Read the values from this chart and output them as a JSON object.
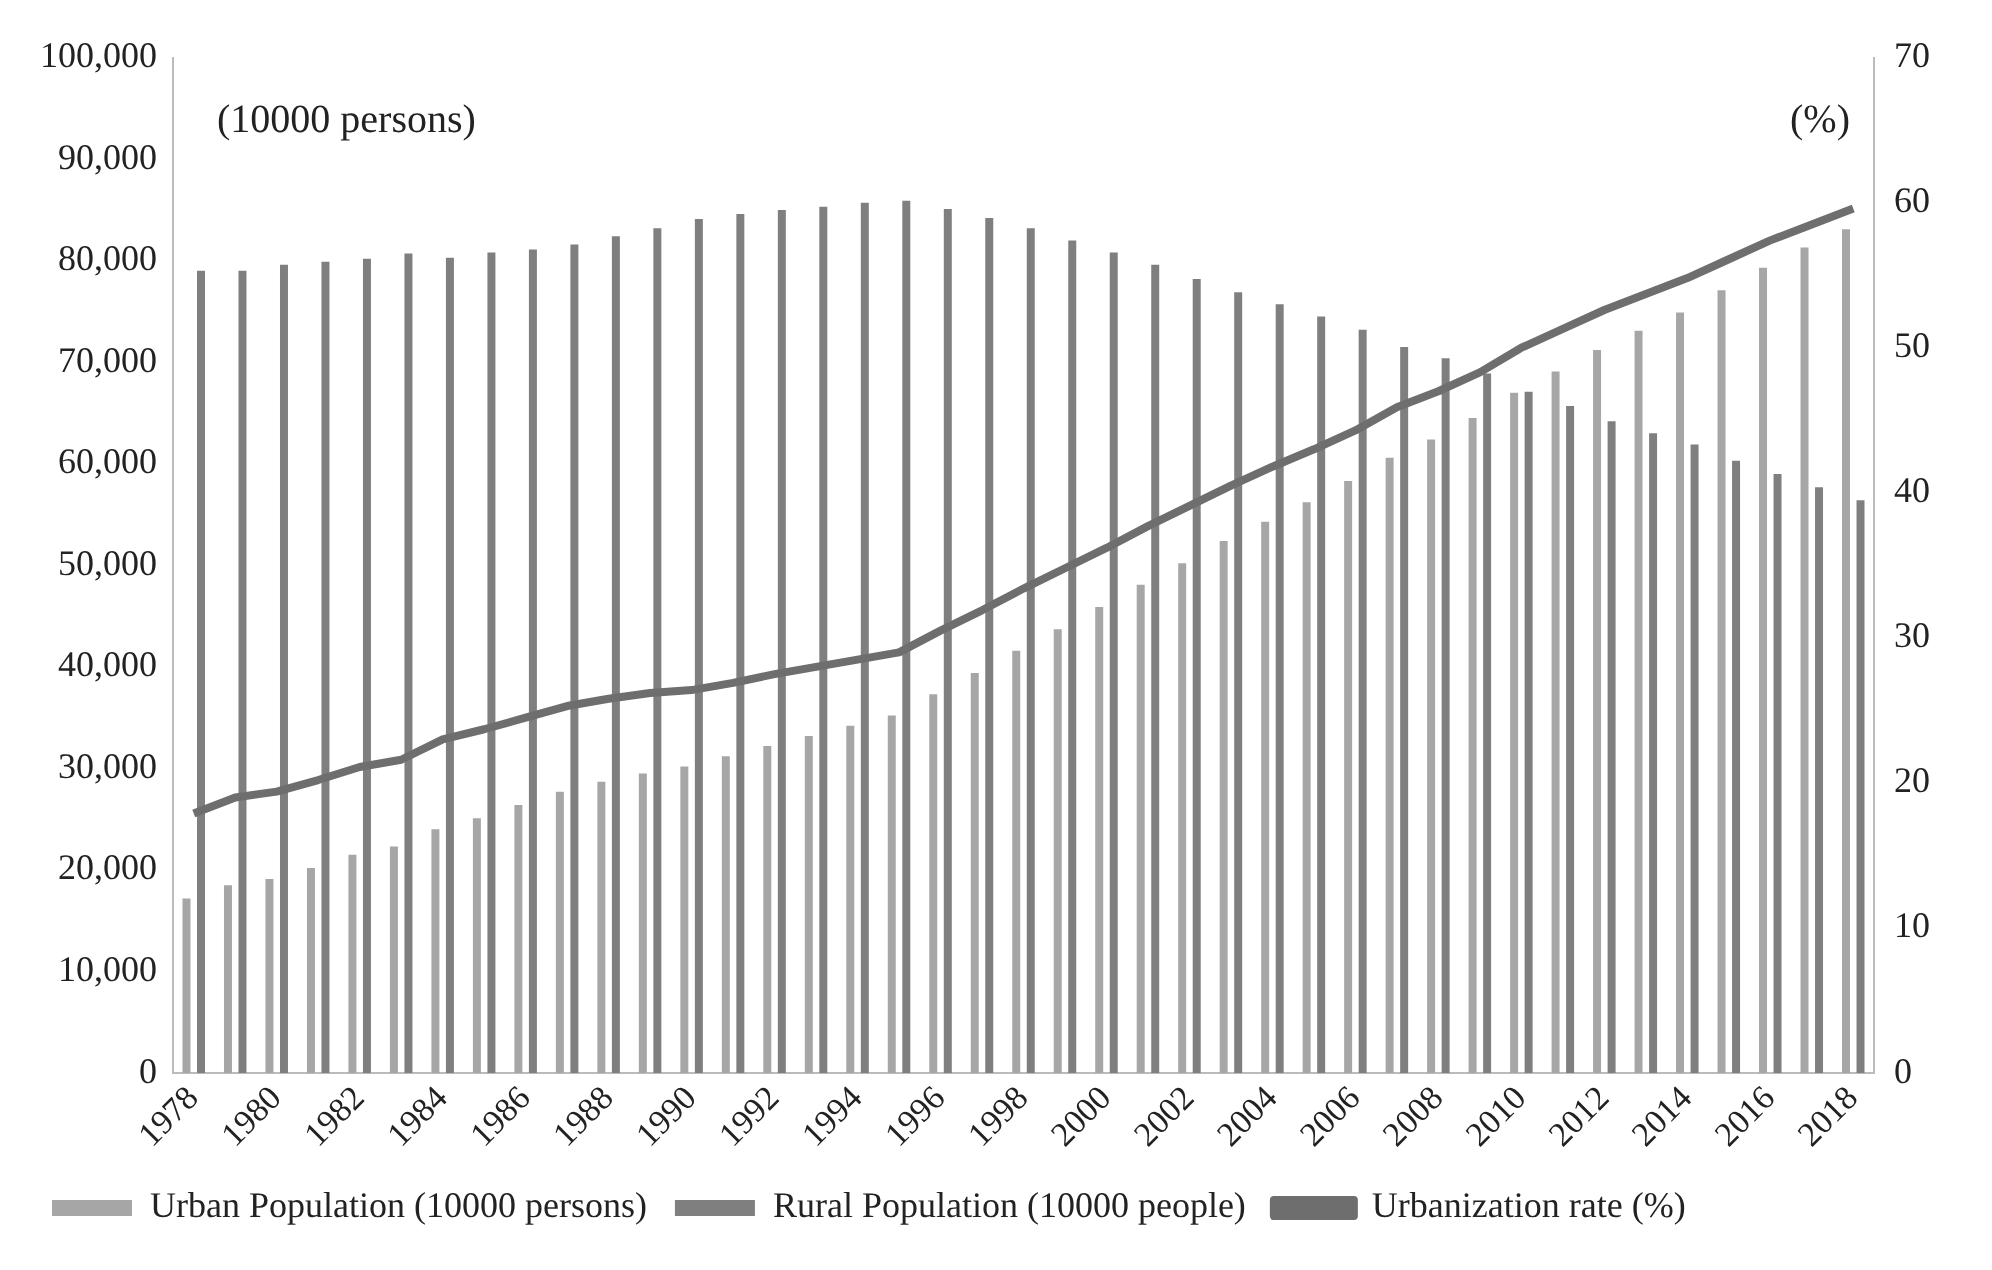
{
  "chart_data": {
    "type": "bar",
    "categories": [
      "1978",
      null,
      "1980",
      null,
      "1982",
      null,
      "1984",
      null,
      "1986",
      null,
      "1988",
      null,
      "1990",
      null,
      "1992",
      null,
      "1994",
      null,
      "1996",
      null,
      "1998",
      null,
      "2000",
      null,
      "2002",
      null,
      "2004",
      null,
      "2006",
      null,
      "2008",
      null,
      "2010",
      null,
      "2012",
      null,
      "2014",
      null,
      "2016",
      null,
      "2018"
    ],
    "series": [
      {
        "name": "Urban Population (10000 persons)",
        "color": "#a6a6a6",
        "values": [
          17200,
          18500,
          19100,
          20200,
          21500,
          22300,
          24000,
          25100,
          26400,
          27700,
          28700,
          29500,
          30200,
          31200,
          32200,
          33200,
          34200,
          35200,
          37300,
          39400,
          41600,
          43700,
          45900,
          48100,
          50200,
          52400,
          54300,
          56200,
          58300,
          60600,
          62400,
          64500,
          67000,
          69100,
          71200,
          73100,
          74900,
          77100,
          79300,
          81300,
          83100
        ]
      },
      {
        "name": "Rural Population (10000 people)",
        "color": "#7f7f7f",
        "values": [
          79000,
          79000,
          79600,
          79900,
          80200,
          80700,
          80300,
          80800,
          81100,
          81600,
          82400,
          83200,
          84100,
          84600,
          85000,
          85300,
          85700,
          85900,
          85100,
          84200,
          83200,
          82000,
          80800,
          79600,
          78200,
          76900,
          75700,
          74500,
          73200,
          71500,
          70400,
          68900,
          67100,
          65700,
          64200,
          63000,
          61900,
          60300,
          59000,
          57700,
          56400
        ]
      },
      {
        "name": "Urbanization rate (%)",
        "type": "line",
        "axis": "y2",
        "color": "#6e6e6e",
        "values": [
          17.9,
          19.0,
          19.4,
          20.2,
          21.1,
          21.6,
          23.0,
          23.7,
          24.5,
          25.3,
          25.8,
          26.2,
          26.4,
          26.9,
          27.5,
          28.0,
          28.5,
          29.0,
          30.5,
          31.9,
          33.4,
          34.8,
          36.2,
          37.7,
          39.1,
          40.5,
          41.8,
          43.0,
          44.3,
          45.9,
          47.0,
          48.3,
          50.0,
          51.3,
          52.6,
          53.7,
          54.8,
          56.1,
          57.4,
          58.5,
          59.6
        ]
      }
    ],
    "ylim": [
      0,
      100000
    ],
    "yticks": [
      0,
      {
        "value": 10000,
        "label": "10,000"
      },
      {
        "value": 20000,
        "label": "20,000"
      },
      {
        "value": 30000,
        "label": "30,000"
      },
      {
        "value": 40000,
        "label": "40,000"
      },
      {
        "value": 50000,
        "label": "50,000"
      },
      {
        "value": 60000,
        "label": "60,000"
      },
      {
        "value": 70000,
        "label": "70,000"
      },
      {
        "value": 80000,
        "label": "80,000"
      },
      {
        "value": 90000,
        "label": "90,000"
      },
      {
        "value": 100000,
        "label": "100,000"
      }
    ],
    "y2lim": [
      0,
      70
    ],
    "y2ticks": [
      0,
      10,
      20,
      30,
      40,
      50,
      60,
      70
    ],
    "annotations": [
      "(10000 persons)",
      "(%)"
    ],
    "grid": false,
    "legend": "bottom",
    "marker": "none",
    "line_style": "solid"
  }
}
